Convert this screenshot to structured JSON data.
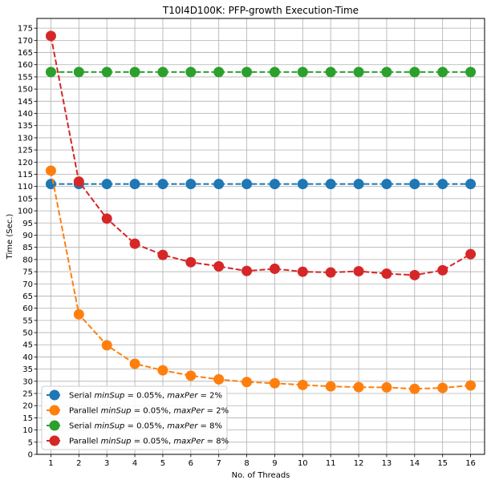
{
  "chart_data": {
    "type": "line",
    "title": "T10I4D100K: PFP-growth Execution-Time",
    "xlabel": "No. of Threads",
    "ylabel": "Time (Sec.)",
    "xlim": [
      0.5,
      16.5
    ],
    "ylim": [
      0,
      179
    ],
    "x_ticks": [
      1,
      2,
      3,
      4,
      5,
      6,
      7,
      8,
      9,
      10,
      11,
      12,
      13,
      14,
      15,
      16
    ],
    "y_ticks": [
      0,
      5,
      10,
      15,
      20,
      25,
      30,
      35,
      40,
      45,
      50,
      55,
      60,
      65,
      70,
      75,
      80,
      85,
      90,
      95,
      100,
      105,
      110,
      115,
      120,
      125,
      130,
      135,
      140,
      145,
      150,
      155,
      160,
      165,
      170,
      175
    ],
    "grid": true,
    "legend_position": "lower-left",
    "x": [
      1,
      2,
      3,
      4,
      5,
      6,
      7,
      8,
      9,
      10,
      11,
      12,
      13,
      14,
      15,
      16
    ],
    "series": [
      {
        "name": "Serial minSup = 0.05%, maxPer = 2%",
        "legend": {
          "prefix": "Serial ",
          "v1": "minSup",
          "eq1": " = 0.05%, ",
          "v2": "maxPer",
          "eq2": " = 2%"
        },
        "color": "#1f77b4",
        "values": [
          111,
          111,
          111,
          111,
          111,
          111,
          111,
          111,
          111,
          111,
          111,
          111,
          111,
          111,
          111,
          111
        ]
      },
      {
        "name": "Parallel minSup = 0.05%, maxPer = 2%",
        "legend": {
          "prefix": "Parallel ",
          "v1": "minSup",
          "eq1": " = 0.05%, ",
          "v2": "maxPer",
          "eq2": " = 2%"
        },
        "color": "#ff7f0e",
        "values": [
          116.5,
          57.5,
          44.8,
          37.2,
          34.5,
          32.3,
          30.8,
          29.7,
          29.2,
          28.5,
          27.9,
          27.6,
          27.5,
          26.9,
          27.3,
          28.3
        ]
      },
      {
        "name": "Serial minSup = 0.05%, maxPer = 8%",
        "legend": {
          "prefix": "Serial ",
          "v1": "minSup",
          "eq1": " = 0.05%, ",
          "v2": "maxPer",
          "eq2": " = 8%"
        },
        "color": "#2ca02c",
        "values": [
          157,
          157,
          157,
          157,
          157,
          157,
          157,
          157,
          157,
          157,
          157,
          157,
          157,
          157,
          157,
          157
        ]
      },
      {
        "name": "Parallel minSup = 0.05%, maxPer = 8%",
        "legend": {
          "prefix": "Parallel ",
          "v1": "minSup",
          "eq1": " = 0.05%, ",
          "v2": "maxPer",
          "eq2": " = 8%"
        },
        "color": "#d62728",
        "values": [
          171.8,
          112,
          96.8,
          86.5,
          81.9,
          78.9,
          77.2,
          75.3,
          76.2,
          75.0,
          74.7,
          75.2,
          74.2,
          73.6,
          75.6,
          82.2
        ]
      }
    ]
  }
}
